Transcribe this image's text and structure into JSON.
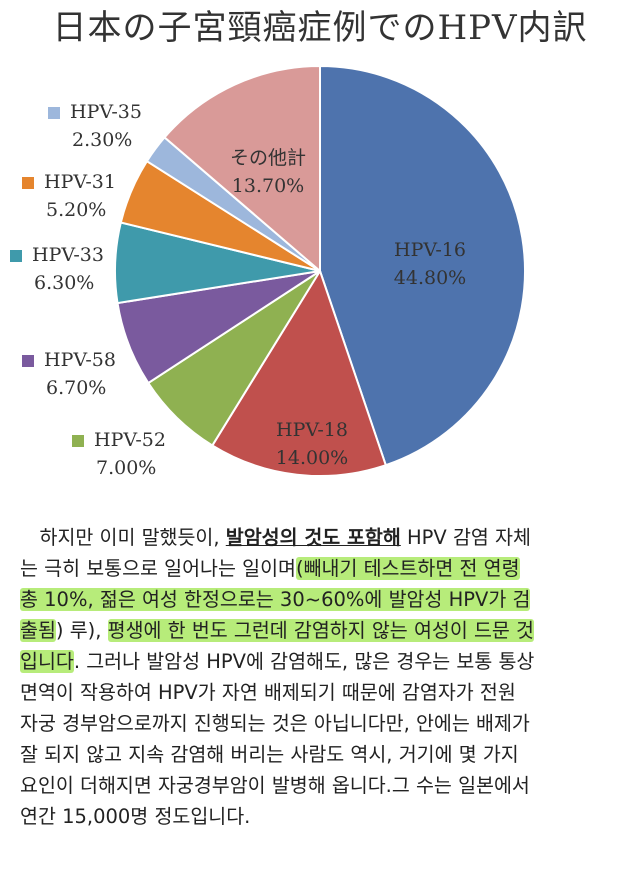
{
  "title": "日本の子宮頸癌症例でのHPV内訳",
  "chart_data": {
    "type": "pie",
    "title": "日本の子宮頸癌症例でのHPV内訳",
    "slices": [
      {
        "name": "HPV-16",
        "value": 44.8,
        "label": "44.80%",
        "color": "#4e73ad"
      },
      {
        "name": "HPV-18",
        "value": 14.0,
        "label": "14.00%",
        "color": "#c0504d"
      },
      {
        "name": "HPV-52",
        "value": 7.0,
        "label": "7.00%",
        "color": "#8fb151"
      },
      {
        "name": "HPV-58",
        "value": 6.7,
        "label": "6.70%",
        "color": "#7a5a9e"
      },
      {
        "name": "HPV-33",
        "value": 6.3,
        "label": "6.30%",
        "color": "#3f9aab"
      },
      {
        "name": "HPV-31",
        "value": 5.2,
        "label": "5.20%",
        "color": "#e5852e"
      },
      {
        "name": "HPV-35",
        "value": 2.3,
        "label": "2.30%",
        "color": "#9db7dc"
      },
      {
        "name": "その他計",
        "value": 13.7,
        "label": "13.70%",
        "color": "#d99a98"
      }
    ]
  },
  "text": {
    "l1a": "하지만 이미 말했듯이, ",
    "l1b": "발암성의 것도 포함해",
    "l1c": " HPV 감염 자체",
    "l2a": "는 극히 보통으로 일어나는 일이며",
    "l2b": "(빼내기 테스트하면 전 연령",
    "l3": "총 10%, 젊은 여성 한정으로는 30~60%에 발암성 HPV가 검",
    "l4a": "출됨",
    "l4b": ") 루), ",
    "l4c": "평생에 한 번도 그런데 감염하지 않는 여성이 드문 것",
    "l5a": "입니다",
    "l5b": ". 그러나 발암성 HPV에 감염해도, 많은 경우는 보통 통상",
    "l6": "면역이 작용하여 HPV가 자연 배제되기 때문에 감염자가 전원",
    "l7": "자궁 경부암으로까지 진행되는 것은 아닙니다만, 안에는 배제가",
    "l8": "잘 되지 않고 지속 감염해 버리는 사람도 역시, 거기에 몇 가지",
    "l9": "요인이 더해지면 자궁경부암이 발병해 옵니다.그 수는 일본에서",
    "l10": "연간 15,000명 정도입니다."
  }
}
